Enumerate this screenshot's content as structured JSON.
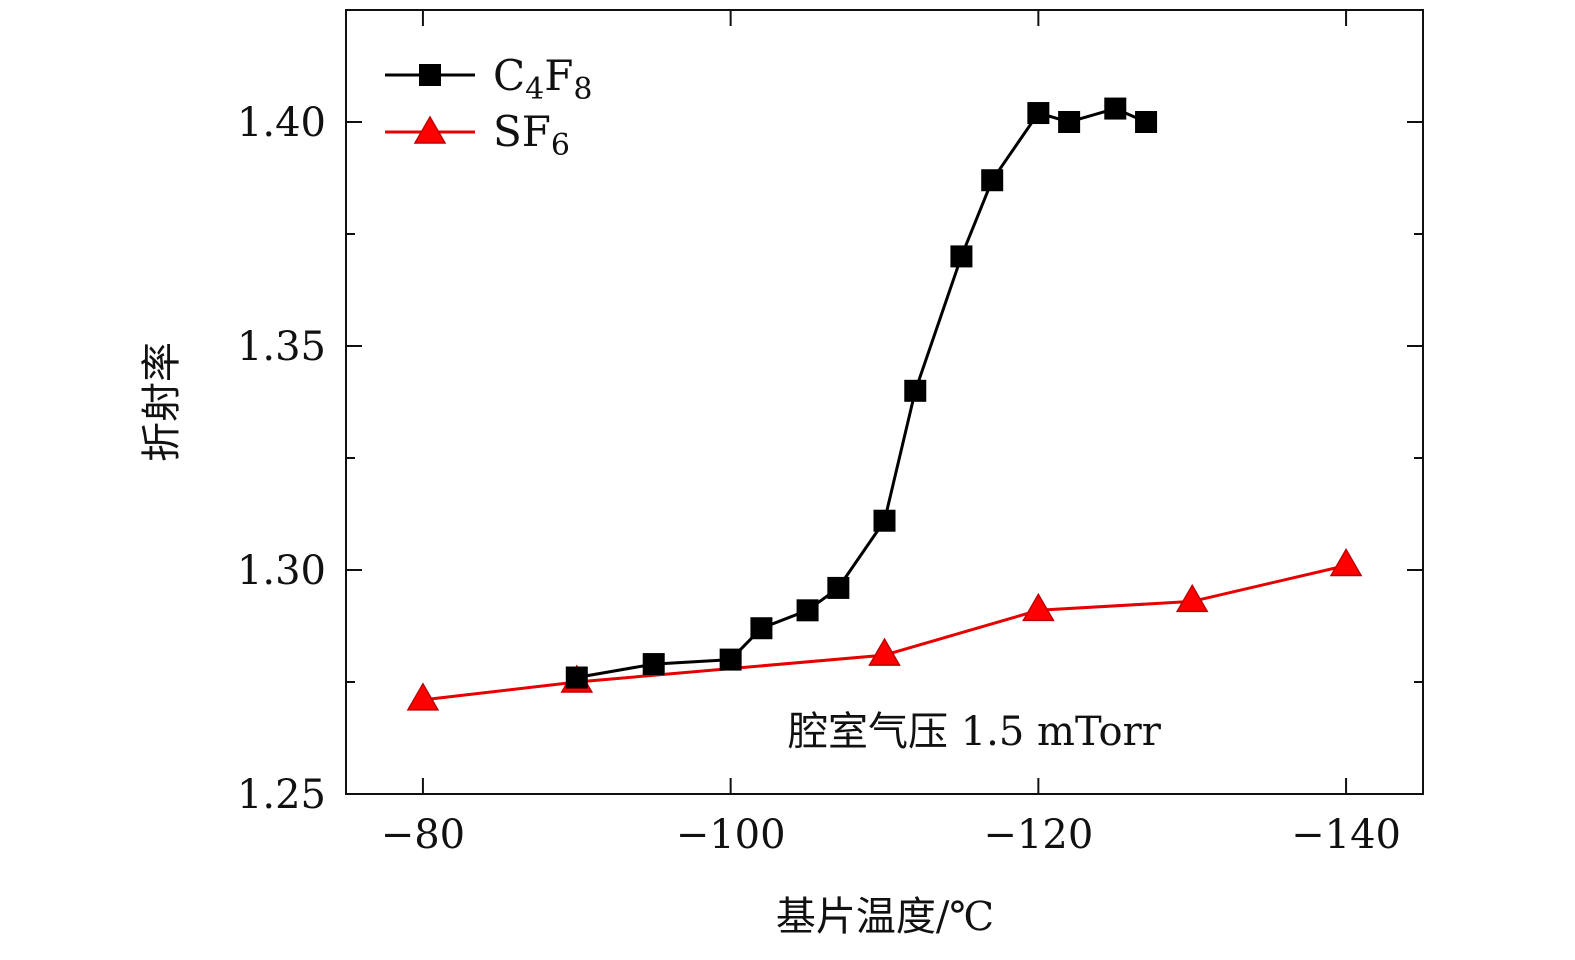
{
  "chart_data": {
    "type": "line",
    "xlabel": "基片温度/℃",
    "ylabel": "折射率",
    "xlim": [
      -75,
      -145
    ],
    "ylim": [
      1.25,
      1.425
    ],
    "x_ticks": [
      -80,
      -100,
      -120,
      -140
    ],
    "x_tick_labels": [
      "−80",
      "−100",
      "−120",
      "−140"
    ],
    "y_ticks": [
      1.25,
      1.3,
      1.35,
      1.4
    ],
    "y_tick_labels": [
      "1.25",
      "1.30",
      "1.35",
      "1.40"
    ],
    "y_minor_ticks": [
      1.275,
      1.325,
      1.375
    ],
    "legend_position": "top-left",
    "grid": false,
    "annotation": "腔室气压 1.5 mTorr",
    "series": [
      {
        "name": "C4F8",
        "label_main": "C",
        "label_sub1": "4",
        "label_mid": "F",
        "label_sub2": "8",
        "color": "#000000",
        "marker": "square",
        "x": [
          -90,
          -95,
          -100,
          -102,
          -105,
          -107,
          -110,
          -112,
          -115,
          -117,
          -120,
          -122,
          -125,
          -127
        ],
        "y": [
          1.276,
          1.279,
          1.28,
          1.287,
          1.291,
          1.296,
          1.311,
          1.34,
          1.37,
          1.387,
          1.402,
          1.4,
          1.403,
          1.4
        ]
      },
      {
        "name": "SF6",
        "label_main": "SF",
        "label_sub1": "6",
        "label_mid": "",
        "label_sub2": "",
        "color": "#e60000",
        "marker": "triangle",
        "x": [
          -80,
          -90,
          -110,
          -120,
          -130,
          -140
        ],
        "y": [
          1.271,
          1.275,
          1.281,
          1.291,
          1.293,
          1.301
        ]
      }
    ]
  }
}
